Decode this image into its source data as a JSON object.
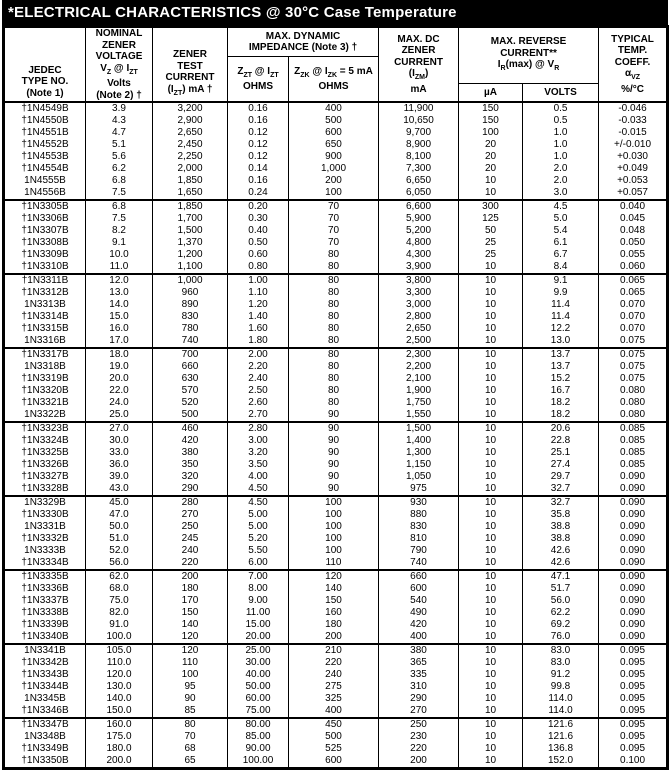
{
  "title": "*ELECTRICAL CHARACTERISTICS @ 30°C Case Temperature",
  "colors": {
    "title_bg": "#000000",
    "title_text": "#ffffff",
    "table_text": "#000000",
    "border": "#000000",
    "page_bg": "#ffffff"
  },
  "table": {
    "header": {
      "jedec": "JEDEC<br>TYPE NO.<br>(Note 1)",
      "nominal_voltage": "NOMINAL<br>ZENER<br>VOLTAGE<br>V<sub>Z</sub> @ I<sub>ZT</sub><br>Volts<br>(Note 2) †",
      "test_current": "ZENER<br>TEST<br>CURRENT<br>(I<sub>ZT</sub>) mA †",
      "impedance_group": "MAX. DYNAMIC<br>IMPEDANCE (Note 3) †",
      "zzt": "Z<sub>ZT</sub> @ I<sub>ZT</sub><br>OHMS",
      "zzk": "Z<sub>ZK</sub> @ I<sub>ZK</sub> = 5 mA<br>OHMS",
      "izm": "MAX. DC<br>ZENER<br>CURRENT<br>(I<sub>ZM</sub>)<br>mA",
      "reverse_group": "MAX. REVERSE<br>CURRENT**<br>I<sub>R</sub>(max) @ V<sub>R</sub>",
      "ua": "µA",
      "volts": "VOLTS",
      "temp_coeff": "TYPICAL<br>TEMP.<br>COEFF.<br>α<sub>VZ</sub><br>%/°C"
    },
    "column_keys": [
      "type_no",
      "vz_volts",
      "izt_ma",
      "zzt_ohms",
      "zzk_ohms",
      "izm_ma",
      "ir_ua",
      "vr_volts",
      "temp_coeff"
    ],
    "sections": [
      {
        "rows": [
          [
            "†1N4549B",
            "3.9",
            "3,200",
            "0.16",
            "400",
            "11,900",
            "150",
            "0.5",
            "-0.046"
          ],
          [
            "†1N4550B",
            "4.3",
            "2,900",
            "0.16",
            "500",
            "10,650",
            "150",
            "0.5",
            "-0.033"
          ],
          [
            "†1N4551B",
            "4.7",
            "2,650",
            "0.12",
            "600",
            "9,700",
            "100",
            "1.0",
            "-0.015"
          ],
          [
            "†1N4552B",
            "5.1",
            "2,450",
            "0.12",
            "650",
            "8,900",
            "20",
            "1.0",
            "+/-0.010"
          ],
          [
            "†1N4553B",
            "5.6",
            "2,250",
            "0.12",
            "900",
            "8,100",
            "20",
            "1.0",
            "+0.030"
          ],
          [
            "†1N4554B",
            "6.2",
            "2,000",
            "0.14",
            "1,000",
            "7,300",
            "20",
            "2.0",
            "+0.049"
          ],
          [
            "1N4555B",
            "6.8",
            "1,850",
            "0.16",
            "200",
            "6,650",
            "10",
            "2.0",
            "+0.053"
          ],
          [
            "1N4556B",
            "7.5",
            "1,650",
            "0.24",
            "100",
            "6,050",
            "10",
            "3.0",
            "+0.057"
          ]
        ]
      },
      {
        "rows": [
          [
            "†1N3305B",
            "6.8",
            "1,850",
            "0.20",
            "70",
            "6,600",
            "300",
            "4.5",
            "0.040"
          ],
          [
            "†1N3306B",
            "7.5",
            "1,700",
            "0.30",
            "70",
            "5,900",
            "125",
            "5.0",
            "0.045"
          ],
          [
            "†1N3307B",
            "8.2",
            "1,500",
            "0.40",
            "70",
            "5,200",
            "50",
            "5.4",
            "0.048"
          ],
          [
            "†1N3308B",
            "9.1",
            "1,370",
            "0.50",
            "70",
            "4,800",
            "25",
            "6.1",
            "0.050"
          ],
          [
            "†1N3309B",
            "10.0",
            "1,200",
            "0.60",
            "80",
            "4,300",
            "25",
            "6.7",
            "0.055"
          ],
          [
            "†1N3310B",
            "11.0",
            "1,100",
            "0.80",
            "80",
            "3,900",
            "10",
            "8.4",
            "0.060"
          ]
        ]
      },
      {
        "rows": [
          [
            "†1N3311B",
            "12.0",
            "1,000",
            "1.00",
            "80",
            "3,800",
            "10",
            "9.1",
            "0.065"
          ],
          [
            "†1N3312B",
            "13.0",
            "960",
            "1.10",
            "80",
            "3,300",
            "10",
            "9.9",
            "0.065"
          ],
          [
            "1N3313B",
            "14.0",
            "890",
            "1.20",
            "80",
            "3,000",
            "10",
            "11.4",
            "0.070"
          ],
          [
            "†1N3314B",
            "15.0",
            "830",
            "1.40",
            "80",
            "2,800",
            "10",
            "11.4",
            "0.070"
          ],
          [
            "†1N3315B",
            "16.0",
            "780",
            "1.60",
            "80",
            "2,650",
            "10",
            "12.2",
            "0.070"
          ],
          [
            "1N3316B",
            "17.0",
            "740",
            "1.80",
            "80",
            "2,500",
            "10",
            "13.0",
            "0.075"
          ]
        ]
      },
      {
        "rows": [
          [
            "†1N3317B",
            "18.0",
            "700",
            "2.00",
            "80",
            "2,300",
            "10",
            "13.7",
            "0.075"
          ],
          [
            "1N3318B",
            "19.0",
            "660",
            "2.20",
            "80",
            "2,200",
            "10",
            "13.7",
            "0.075"
          ],
          [
            "†1N3319B",
            "20.0",
            "630",
            "2.40",
            "80",
            "2,100",
            "10",
            "15.2",
            "0.075"
          ],
          [
            "†1N3320B",
            "22.0",
            "570",
            "2.50",
            "80",
            "1,900",
            "10",
            "16.7",
            "0.080"
          ],
          [
            "†1N3321B",
            "24.0",
            "520",
            "2.60",
            "80",
            "1,750",
            "10",
            "18.2",
            "0.080"
          ],
          [
            "1N3322B",
            "25.0",
            "500",
            "2.70",
            "90",
            "1,550",
            "10",
            "18.2",
            "0.080"
          ]
        ]
      },
      {
        "rows": [
          [
            "†1N3323B",
            "27.0",
            "460",
            "2.80",
            "90",
            "1,500",
            "10",
            "20.6",
            "0.085"
          ],
          [
            "†1N3324B",
            "30.0",
            "420",
            "3.00",
            "90",
            "1,400",
            "10",
            "22.8",
            "0.085"
          ],
          [
            "†1N3325B",
            "33.0",
            "380",
            "3.20",
            "90",
            "1,300",
            "10",
            "25.1",
            "0.085"
          ],
          [
            "†1N3326B",
            "36.0",
            "350",
            "3.50",
            "90",
            "1,150",
            "10",
            "27.4",
            "0.085"
          ],
          [
            "†1N3327B",
            "39.0",
            "320",
            "4.00",
            "90",
            "1,050",
            "10",
            "29.7",
            "0.090"
          ],
          [
            "†1N3328B",
            "43.0",
            "290",
            "4.50",
            "90",
            "975",
            "10",
            "32.7",
            "0.090"
          ]
        ]
      },
      {
        "rows": [
          [
            "1N3329B",
            "45.0",
            "280",
            "4.50",
            "100",
            "930",
            "10",
            "32.7",
            "0.090"
          ],
          [
            "†1N3330B",
            "47.0",
            "270",
            "5.00",
            "100",
            "880",
            "10",
            "35.8",
            "0.090"
          ],
          [
            "1N3331B",
            "50.0",
            "250",
            "5.00",
            "100",
            "830",
            "10",
            "38.8",
            "0.090"
          ],
          [
            "†1N3332B",
            "51.0",
            "245",
            "5.20",
            "100",
            "810",
            "10",
            "38.8",
            "0.090"
          ],
          [
            "1N3333B",
            "52.0",
            "240",
            "5.50",
            "100",
            "790",
            "10",
            "42.6",
            "0.090"
          ],
          [
            "†1N3334B",
            "56.0",
            "220",
            "6.00",
            "110",
            "740",
            "10",
            "42.6",
            "0.090"
          ]
        ]
      },
      {
        "rows": [
          [
            "†1N3335B",
            "62.0",
            "200",
            "7.00",
            "120",
            "660",
            "10",
            "47.1",
            "0.090"
          ],
          [
            "†1N3336B",
            "68.0",
            "180",
            "8.00",
            "140",
            "600",
            "10",
            "51.7",
            "0.090"
          ],
          [
            "†1N3337B",
            "75.0",
            "170",
            "9.00",
            "150",
            "540",
            "10",
            "56.0",
            "0.090"
          ],
          [
            "†1N3338B",
            "82.0",
            "150",
            "11.00",
            "160",
            "490",
            "10",
            "62.2",
            "0.090"
          ],
          [
            "†1N3339B",
            "91.0",
            "140",
            "15.00",
            "180",
            "420",
            "10",
            "69.2",
            "0.090"
          ],
          [
            "†1N3340B",
            "100.0",
            "120",
            "20.00",
            "200",
            "400",
            "10",
            "76.0",
            "0.090"
          ]
        ]
      },
      {
        "rows": [
          [
            "1N3341B",
            "105.0",
            "120",
            "25.00",
            "210",
            "380",
            "10",
            "83.0",
            "0.095"
          ],
          [
            "†1N3342B",
            "110.0",
            "110",
            "30.00",
            "220",
            "365",
            "10",
            "83.0",
            "0.095"
          ],
          [
            "†1N3343B",
            "120.0",
            "100",
            "40.00",
            "240",
            "335",
            "10",
            "91.2",
            "0.095"
          ],
          [
            "†1N3344B",
            "130.0",
            "95",
            "50.00",
            "275",
            "310",
            "10",
            "99.8",
            "0.095"
          ],
          [
            "1N3345B",
            "140.0",
            "90",
            "60.00",
            "325",
            "290",
            "10",
            "114.0",
            "0.095"
          ],
          [
            "†1N3346B",
            "150.0",
            "85",
            "75.00",
            "400",
            "270",
            "10",
            "114.0",
            "0.095"
          ]
        ]
      },
      {
        "rows": [
          [
            "†1N3347B",
            "160.0",
            "80",
            "80.00",
            "450",
            "250",
            "10",
            "121.6",
            "0.095"
          ],
          [
            "1N3348B",
            "175.0",
            "70",
            "85.00",
            "500",
            "230",
            "10",
            "121.6",
            "0.095"
          ],
          [
            "†1N3349B",
            "180.0",
            "68",
            "90.00",
            "525",
            "220",
            "10",
            "136.8",
            "0.095"
          ],
          [
            "†1N3350B",
            "200.0",
            "65",
            "100.00",
            "600",
            "200",
            "10",
            "152.0",
            "0.100"
          ]
        ]
      }
    ]
  }
}
